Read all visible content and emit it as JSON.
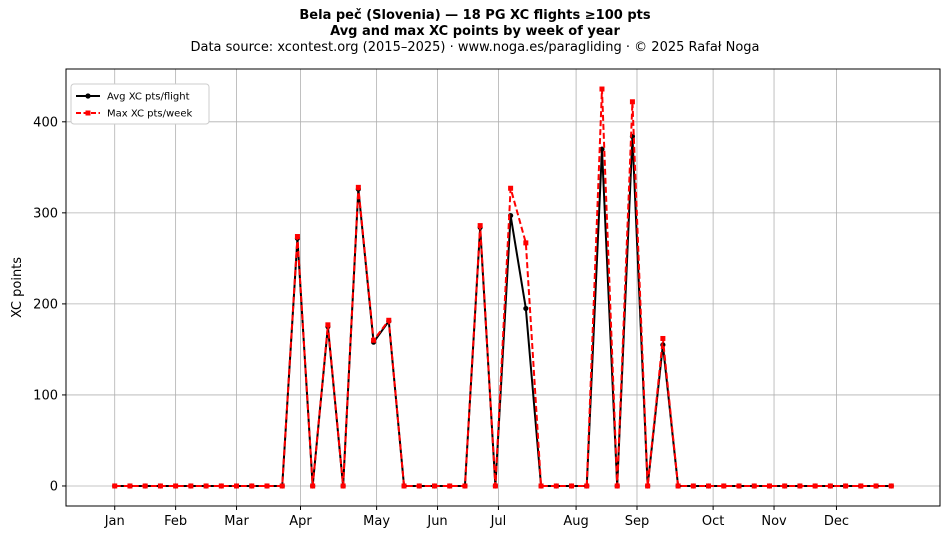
{
  "title": {
    "line1": "Bela peč (Slovenia)  —  18 PG XC flights ≥100 pts",
    "line2": "Avg and max XC points by week of year",
    "line3": "Data source: xcontest.org (2015–2025)  ·  www.noga.es/paragliding  ·  © 2025 Rafał Noga"
  },
  "chart_data": {
    "type": "line",
    "title": "Bela peč (Slovenia)  —  18 PG XC flights ≥100 pts",
    "subtitle": "Avg and max XC points by week of year",
    "xlabel": "",
    "ylabel": "XC points",
    "x": [
      1,
      2,
      3,
      4,
      5,
      6,
      7,
      8,
      9,
      10,
      11,
      12,
      13,
      14,
      15,
      16,
      17,
      18,
      19,
      20,
      21,
      22,
      23,
      24,
      25,
      26,
      27,
      28,
      29,
      30,
      31,
      32,
      33,
      34,
      35,
      36,
      37,
      38,
      39,
      40,
      41,
      42,
      43,
      44,
      45,
      46,
      47,
      48,
      49,
      50,
      51,
      52
    ],
    "xlim": [
      -2.2,
      55.2
    ],
    "ylim": [
      -22,
      458
    ],
    "xticks": [
      {
        "x": 1,
        "label": "Jan"
      },
      {
        "x": 5,
        "label": "Feb"
      },
      {
        "x": 9,
        "label": "Mar"
      },
      {
        "x": 13.2,
        "label": "Apr"
      },
      {
        "x": 18.2,
        "label": "May"
      },
      {
        "x": 22.2,
        "label": "Jun"
      },
      {
        "x": 26.2,
        "label": "Jul"
      },
      {
        "x": 31.3,
        "label": "Aug"
      },
      {
        "x": 35.3,
        "label": "Sep"
      },
      {
        "x": 40.3,
        "label": "Oct"
      },
      {
        "x": 44.3,
        "label": "Nov"
      },
      {
        "x": 48.4,
        "label": "Dec"
      }
    ],
    "yticks": [
      0,
      100,
      200,
      300,
      400
    ],
    "grid": true,
    "legend_position": "top-left",
    "series": [
      {
        "name": "Avg XC pts/flight",
        "color": "#000000",
        "style": "solid",
        "marker": "circle",
        "values": [
          0,
          0,
          0,
          0,
          0,
          0,
          0,
          0,
          0,
          0,
          0,
          0,
          272,
          0,
          175,
          0,
          326,
          158,
          181,
          0,
          0,
          0,
          0,
          0,
          284,
          0,
          297,
          195,
          0,
          0,
          0,
          0,
          370,
          0,
          384,
          0,
          155,
          0,
          0,
          0,
          0,
          0,
          0,
          0,
          0,
          0,
          0,
          0,
          0,
          0,
          0,
          0
        ]
      },
      {
        "name": "Max XC pts/week",
        "color": "#ff0000",
        "style": "dashed",
        "marker": "square",
        "values": [
          0,
          0,
          0,
          0,
          0,
          0,
          0,
          0,
          0,
          0,
          0,
          0,
          274,
          0,
          177,
          0,
          328,
          160,
          182,
          0,
          0,
          0,
          0,
          0,
          286,
          0,
          327,
          267,
          0,
          0,
          0,
          0,
          436,
          0,
          422,
          0,
          162,
          0,
          0,
          0,
          0,
          0,
          0,
          0,
          0,
          0,
          0,
          0,
          0,
          0,
          0,
          0
        ]
      }
    ]
  }
}
